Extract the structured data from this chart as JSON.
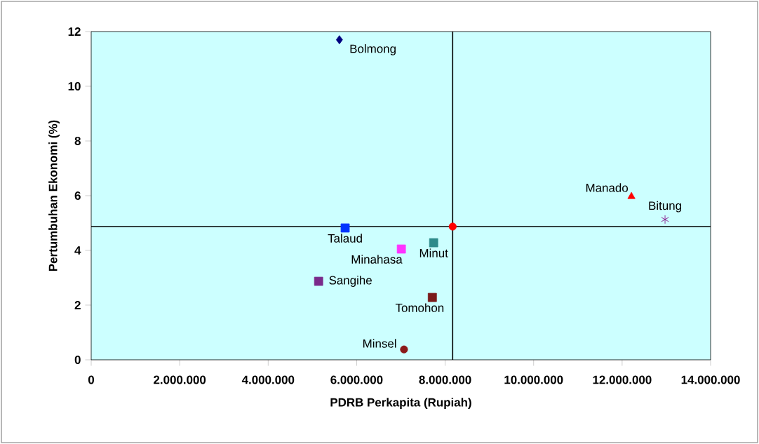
{
  "chart_data": {
    "type": "scatter",
    "xlabel": "PDRB Perkapita  (Rupiah)",
    "ylabel": "Pertumbuhan Ekonomi  (%)",
    "xlim": [
      0,
      14000000
    ],
    "ylim": [
      0,
      12
    ],
    "xticks": [
      0,
      {
        "value": 2000000,
        "label": "2.000.000"
      },
      {
        "value": 4000000,
        "label": "4.000.000"
      },
      {
        "value": 6000000,
        "label": "6.000.000"
      },
      {
        "value": 8000000,
        "label": "8.000.000"
      },
      {
        "value": 10000000,
        "label": "10.000.000"
      },
      {
        "value": 12000000,
        "label": "12.000.000"
      },
      {
        "value": 14000000,
        "label": "14.000.000"
      }
    ],
    "yticks": [
      0,
      2,
      4,
      6,
      8,
      10,
      12
    ],
    "grid": false,
    "ref_lines": [
      {
        "axis": "x",
        "value": 8170000,
        "color": "#000000"
      },
      {
        "axis": "y",
        "value": 4.87,
        "color": "#000000"
      }
    ],
    "series": [
      {
        "name": "Bolmong",
        "color": "#000080",
        "marker": "diamond",
        "x": [
          5610000
        ],
        "values": [
          11.7
        ]
      },
      {
        "name": "Talaud",
        "color": "#0033ff",
        "marker": "square",
        "x": [
          5740000
        ],
        "values": [
          4.82
        ]
      },
      {
        "name": "Minahasa",
        "color": "#ff33ff",
        "marker": "square",
        "x": [
          7010000
        ],
        "values": [
          4.05
        ]
      },
      {
        "name": "Minut",
        "color": "#2e8b8b",
        "marker": "square",
        "x": [
          7740000
        ],
        "values": [
          4.28
        ]
      },
      {
        "name": "Sangihe",
        "color": "#7a2a8a",
        "marker": "square",
        "x": [
          5140000
        ],
        "values": [
          2.87
        ]
      },
      {
        "name": "Tomohon",
        "color": "#7a1a1a",
        "marker": "square",
        "x": [
          7710000
        ],
        "values": [
          2.28
        ]
      },
      {
        "name": "Minsel",
        "color": "#8b1a1a",
        "marker": "circle",
        "x": [
          7070000
        ],
        "values": [
          0.38
        ]
      },
      {
        "name": "Manado",
        "color": "#ff0000",
        "marker": "triangle",
        "x": [
          12210000
        ],
        "values": [
          5.97
        ]
      },
      {
        "name": "Bitung",
        "color": "#800080",
        "marker": "cross",
        "x": [
          12970000
        ],
        "values": [
          5.13
        ]
      },
      {
        "color": "#ff0000",
        "marker": "circle",
        "x": [
          8170000
        ],
        "values": [
          4.87
        ]
      }
    ]
  }
}
